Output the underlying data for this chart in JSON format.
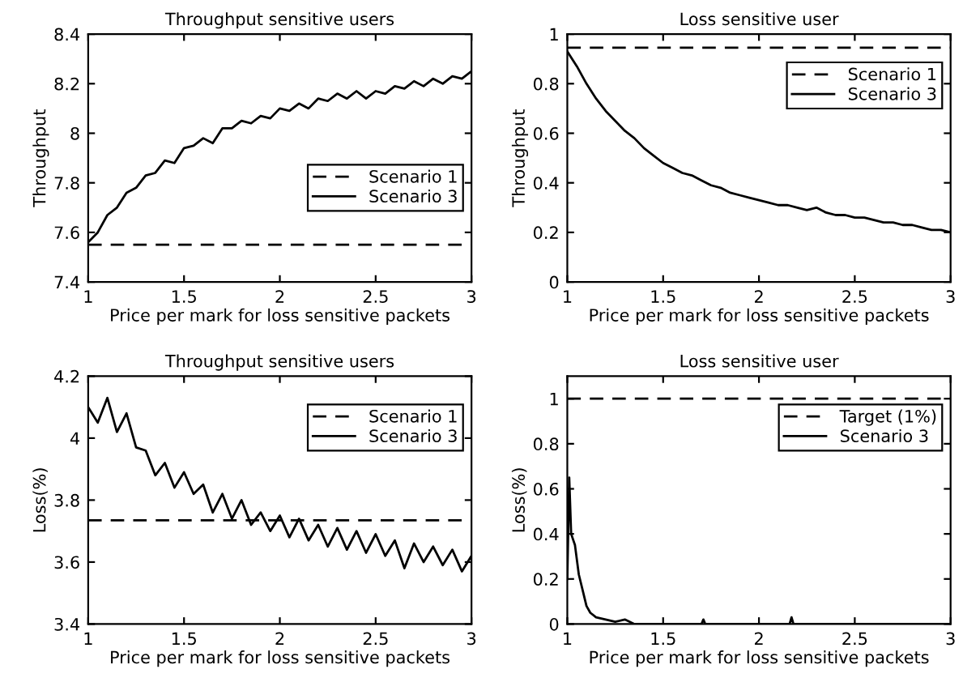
{
  "chart_data": [
    {
      "type": "line",
      "title": "Throughput sensitive users",
      "xlabel": "Price per mark for loss sensitive packets",
      "ylabel": "Throughput",
      "xlim": [
        1,
        3
      ],
      "xticks": [
        1,
        1.5,
        2,
        2.5,
        3
      ],
      "ylim": [
        7.4,
        8.4
      ],
      "yticks": [
        7.4,
        7.6,
        7.8,
        8,
        8.2,
        8.4
      ],
      "grid": false,
      "legend": "right",
      "marker": "none",
      "series": [
        {
          "name": "Scenario 1",
          "color": "#000000",
          "line_style": "dashed",
          "x": [
            1,
            3
          ],
          "values": [
            7.55,
            7.55
          ]
        },
        {
          "name": "Scenario 3",
          "color": "#000000",
          "line_style": "solid",
          "x": [
            1.0,
            1.05,
            1.1,
            1.15,
            1.2,
            1.25,
            1.3,
            1.35,
            1.4,
            1.45,
            1.5,
            1.55,
            1.6,
            1.65,
            1.7,
            1.75,
            1.8,
            1.85,
            1.9,
            1.95,
            2.0,
            2.05,
            2.1,
            2.15,
            2.2,
            2.25,
            2.3,
            2.35,
            2.4,
            2.45,
            2.5,
            2.55,
            2.6,
            2.65,
            2.7,
            2.75,
            2.8,
            2.85,
            2.9,
            2.95,
            3.0
          ],
          "values": [
            7.56,
            7.6,
            7.67,
            7.7,
            7.76,
            7.78,
            7.83,
            7.84,
            7.89,
            7.88,
            7.94,
            7.95,
            7.98,
            7.96,
            8.02,
            8.02,
            8.05,
            8.04,
            8.07,
            8.06,
            8.1,
            8.09,
            8.12,
            8.1,
            8.14,
            8.13,
            8.16,
            8.14,
            8.17,
            8.14,
            8.17,
            8.16,
            8.19,
            8.18,
            8.21,
            8.19,
            8.22,
            8.2,
            8.23,
            8.22,
            8.25
          ]
        }
      ]
    },
    {
      "type": "line",
      "title": "Loss sensitive user",
      "xlabel": "Price per mark for loss sensitive packets",
      "ylabel": "Throughput",
      "xlim": [
        1,
        3
      ],
      "xticks": [
        1,
        1.5,
        2,
        2.5,
        3
      ],
      "ylim": [
        0,
        1
      ],
      "yticks": [
        0,
        0.2,
        0.4,
        0.6,
        0.8,
        1
      ],
      "grid": false,
      "legend": "top right",
      "marker": "none",
      "series": [
        {
          "name": "Scenario 1",
          "color": "#000000",
          "line_style": "dashed",
          "x": [
            1,
            3
          ],
          "values": [
            0.945,
            0.945
          ]
        },
        {
          "name": "Scenario 3",
          "color": "#000000",
          "line_style": "solid",
          "x": [
            1.0,
            1.05,
            1.1,
            1.15,
            1.2,
            1.25,
            1.3,
            1.35,
            1.4,
            1.45,
            1.5,
            1.55,
            1.6,
            1.65,
            1.7,
            1.75,
            1.8,
            1.85,
            1.9,
            1.95,
            2.0,
            2.05,
            2.1,
            2.15,
            2.2,
            2.25,
            2.3,
            2.35,
            2.4,
            2.45,
            2.5,
            2.55,
            2.6,
            2.65,
            2.7,
            2.75,
            2.8,
            2.85,
            2.9,
            2.95,
            3.0
          ],
          "values": [
            0.93,
            0.87,
            0.8,
            0.74,
            0.69,
            0.65,
            0.61,
            0.58,
            0.54,
            0.51,
            0.48,
            0.46,
            0.44,
            0.43,
            0.41,
            0.39,
            0.38,
            0.36,
            0.35,
            0.34,
            0.33,
            0.32,
            0.31,
            0.31,
            0.3,
            0.29,
            0.3,
            0.28,
            0.27,
            0.27,
            0.26,
            0.26,
            0.25,
            0.24,
            0.24,
            0.23,
            0.23,
            0.22,
            0.21,
            0.21,
            0.2
          ]
        }
      ]
    },
    {
      "type": "line",
      "title": "Throughput sensitive users",
      "xlabel": "Price per mark for loss sensitive packets",
      "ylabel": "Loss(%)",
      "xlim": [
        1,
        3
      ],
      "xticks": [
        1,
        1.5,
        2,
        2.5,
        3
      ],
      "ylim": [
        3.4,
        4.2
      ],
      "yticks": [
        3.4,
        3.6,
        3.8,
        4,
        4.2
      ],
      "grid": false,
      "legend": "top right",
      "marker": "none",
      "series": [
        {
          "name": "Scenario 1",
          "color": "#000000",
          "line_style": "dashed",
          "x": [
            1,
            3
          ],
          "values": [
            3.735,
            3.735
          ]
        },
        {
          "name": "Scenario 3",
          "color": "#000000",
          "line_style": "solid",
          "x": [
            1.0,
            1.05,
            1.1,
            1.15,
            1.2,
            1.25,
            1.3,
            1.35,
            1.4,
            1.45,
            1.5,
            1.55,
            1.6,
            1.65,
            1.7,
            1.75,
            1.8,
            1.85,
            1.9,
            1.95,
            2.0,
            2.05,
            2.1,
            2.15,
            2.2,
            2.25,
            2.3,
            2.35,
            2.4,
            2.45,
            2.5,
            2.55,
            2.6,
            2.65,
            2.7,
            2.75,
            2.8,
            2.85,
            2.9,
            2.95,
            3.0
          ],
          "values": [
            4.1,
            4.05,
            4.13,
            4.02,
            4.08,
            3.97,
            3.96,
            3.88,
            3.92,
            3.84,
            3.89,
            3.82,
            3.85,
            3.76,
            3.82,
            3.74,
            3.8,
            3.72,
            3.76,
            3.7,
            3.75,
            3.68,
            3.74,
            3.67,
            3.72,
            3.65,
            3.71,
            3.64,
            3.7,
            3.63,
            3.69,
            3.62,
            3.67,
            3.58,
            3.66,
            3.6,
            3.65,
            3.59,
            3.64,
            3.57,
            3.62
          ]
        }
      ]
    },
    {
      "type": "line",
      "title": "Loss sensitive user",
      "xlabel": "Price per mark for loss sensitive packets",
      "ylabel": "Loss(%)",
      "xlim": [
        1,
        3
      ],
      "xticks": [
        1,
        1.5,
        2,
        2.5,
        3
      ],
      "ylim": [
        0,
        1.1
      ],
      "yticks": [
        0,
        0.2,
        0.4,
        0.6,
        0.8,
        1
      ],
      "grid": false,
      "legend": "top right",
      "marker": "none",
      "series": [
        {
          "name": "Target (1%)",
          "color": "#000000",
          "line_style": "dashed",
          "x": [
            1,
            3
          ],
          "values": [
            1,
            1
          ]
        },
        {
          "name": "Scenario 3",
          "color": "#000000",
          "line_style": "solid",
          "x": [
            1.0,
            1.01,
            1.02,
            1.04,
            1.06,
            1.08,
            1.1,
            1.12,
            1.15,
            1.2,
            1.25,
            1.3,
            1.35,
            1.4,
            1.7,
            1.71,
            1.72,
            2.16,
            2.17,
            2.18,
            3.0
          ],
          "values": [
            0.2,
            0.65,
            0.4,
            0.35,
            0.22,
            0.15,
            0.08,
            0.05,
            0.03,
            0.02,
            0.01,
            0.02,
            0,
            0,
            0,
            0.02,
            0,
            0,
            0.03,
            0,
            0
          ]
        }
      ]
    }
  ]
}
